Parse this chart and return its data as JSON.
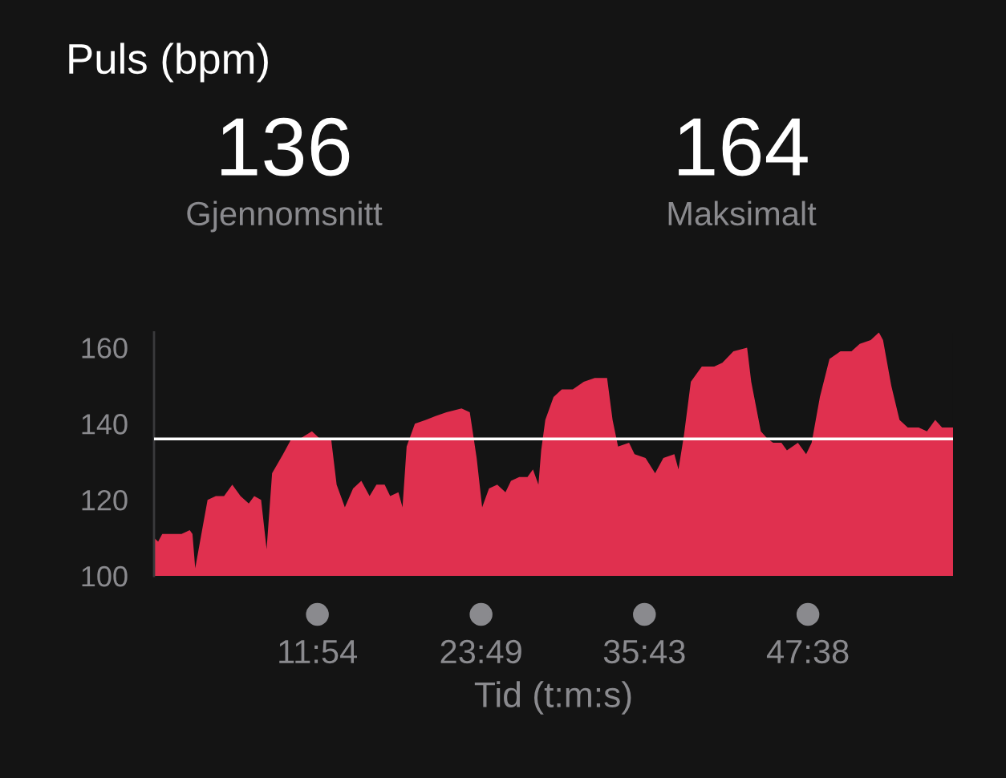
{
  "chart_data": {
    "type": "area",
    "title": "Puls (bpm)",
    "xlabel": "Tid (t:m:s)",
    "annotations": [
      "136",
      "Gjennomsnitt",
      "164",
      "Maksimalt"
    ],
    "x": [
      0,
      0.3,
      0.6,
      1.1,
      2.0,
      2.6,
      2.8,
      3.0,
      3.9,
      4.5,
      5.1,
      5.7,
      6.3,
      6.9,
      7.3,
      7.8,
      8.2,
      8.6,
      9.4,
      10.0,
      10.6,
      11.5,
      12.1,
      12.9,
      13.3,
      13.9,
      14.5,
      15.1,
      15.7,
      16.2,
      16.8,
      17.2,
      17.8,
      18.1,
      18.4,
      19.0,
      19.8,
      20.5,
      21.3,
      22.4,
      23.0,
      23.5,
      23.9,
      24.4,
      25.0,
      25.6,
      26.0,
      26.6,
      27.2,
      27.6,
      28.0,
      28.2,
      28.5,
      29.1,
      29.7,
      30.5,
      31.3,
      32.1,
      33.0,
      33.4,
      33.8,
      34.6,
      35.0,
      35.8,
      36.5,
      37.1,
      37.9,
      38.2,
      38.6,
      39.1,
      39.9,
      40.8,
      41.4,
      42.2,
      43.2,
      43.5,
      44.2,
      44.7,
      45.1,
      45.7,
      46.1,
      46.9,
      47.5,
      47.9,
      48.5,
      49.2,
      50.0,
      50.8,
      51.4,
      52.2,
      52.8,
      53.1,
      53.7,
      54.3,
      54.9,
      55.7,
      56.3,
      56.9,
      57.4,
      58.2
    ],
    "values": [
      110,
      109,
      111,
      111,
      111,
      112,
      111,
      102,
      120,
      121,
      121,
      124,
      121,
      119,
      121,
      120,
      107,
      127,
      132,
      136,
      136,
      138,
      136,
      136,
      124,
      118,
      123,
      125,
      121,
      124,
      124,
      121,
      122,
      118,
      134,
      140,
      141,
      142,
      143,
      144,
      143,
      131,
      118,
      123,
      124,
      122,
      125,
      126,
      126,
      128,
      124,
      133,
      141,
      147,
      149,
      149,
      151,
      152,
      152,
      141,
      134,
      135,
      132,
      131,
      127,
      131,
      132,
      128,
      137,
      151,
      155,
      155,
      156,
      159,
      160,
      151,
      138,
      136,
      135,
      135,
      133,
      135,
      132,
      135,
      147,
      157,
      159,
      159,
      161,
      162,
      164,
      162,
      150,
      141,
      139,
      139,
      138,
      141,
      139,
      139
    ],
    "color": "#e0304f",
    "xlim": [
      0,
      58.2
    ],
    "ylim": [
      100,
      164
    ],
    "xticks": [
      {
        "value": 11.9,
        "label": "11:54"
      },
      {
        "value": 23.82,
        "label": "23:49"
      },
      {
        "value": 35.72,
        "label": "35:43"
      },
      {
        "value": 47.63,
        "label": "47:38"
      }
    ],
    "yticks": [
      100,
      120,
      140,
      160
    ],
    "ref_lines": [
      {
        "axis": "y",
        "value": 136,
        "color": "#ffffff"
      }
    ]
  }
}
